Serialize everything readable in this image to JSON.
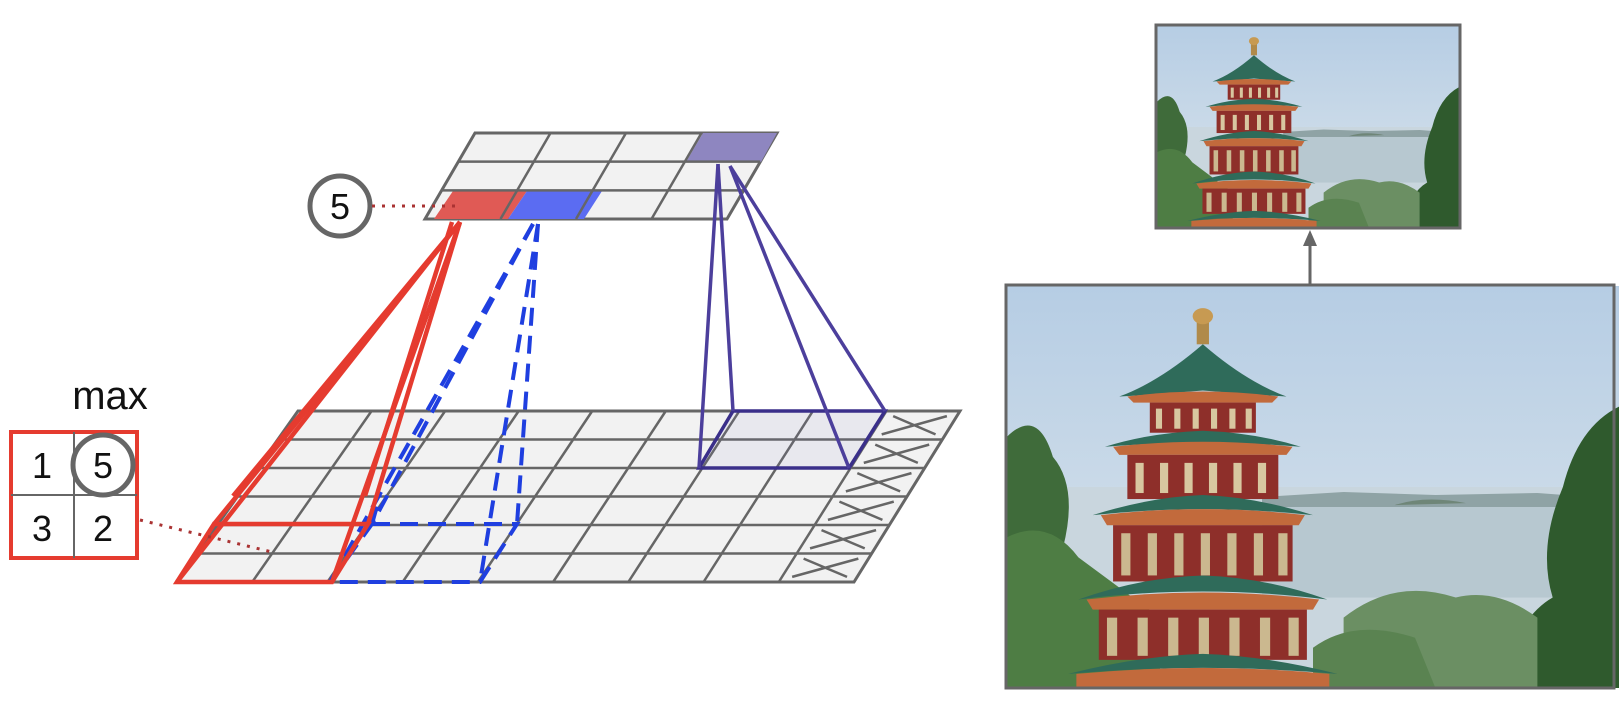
{
  "diagram": {
    "type": "max-pooling illustration",
    "pooled_value": "5",
    "max_label": "max",
    "pool_window": {
      "values": [
        "1",
        "5",
        "3",
        "2"
      ],
      "selected": "5"
    },
    "colors": {
      "grid_fill": "#f2f2f2",
      "grid_line": "#666666",
      "red": "#e53b2f",
      "red_cell": "#e05a55",
      "blue": "#1f3fe0",
      "blue_cell": "#5b6cf2",
      "purple": "#4c3f9c",
      "purple_cell": "#8e86c0",
      "circle": "#666666",
      "photo_border": "#666666",
      "arrow": "#666666"
    },
    "photos": {
      "large": "pagoda-photo-large",
      "small": "pagoda-photo-small"
    }
  }
}
